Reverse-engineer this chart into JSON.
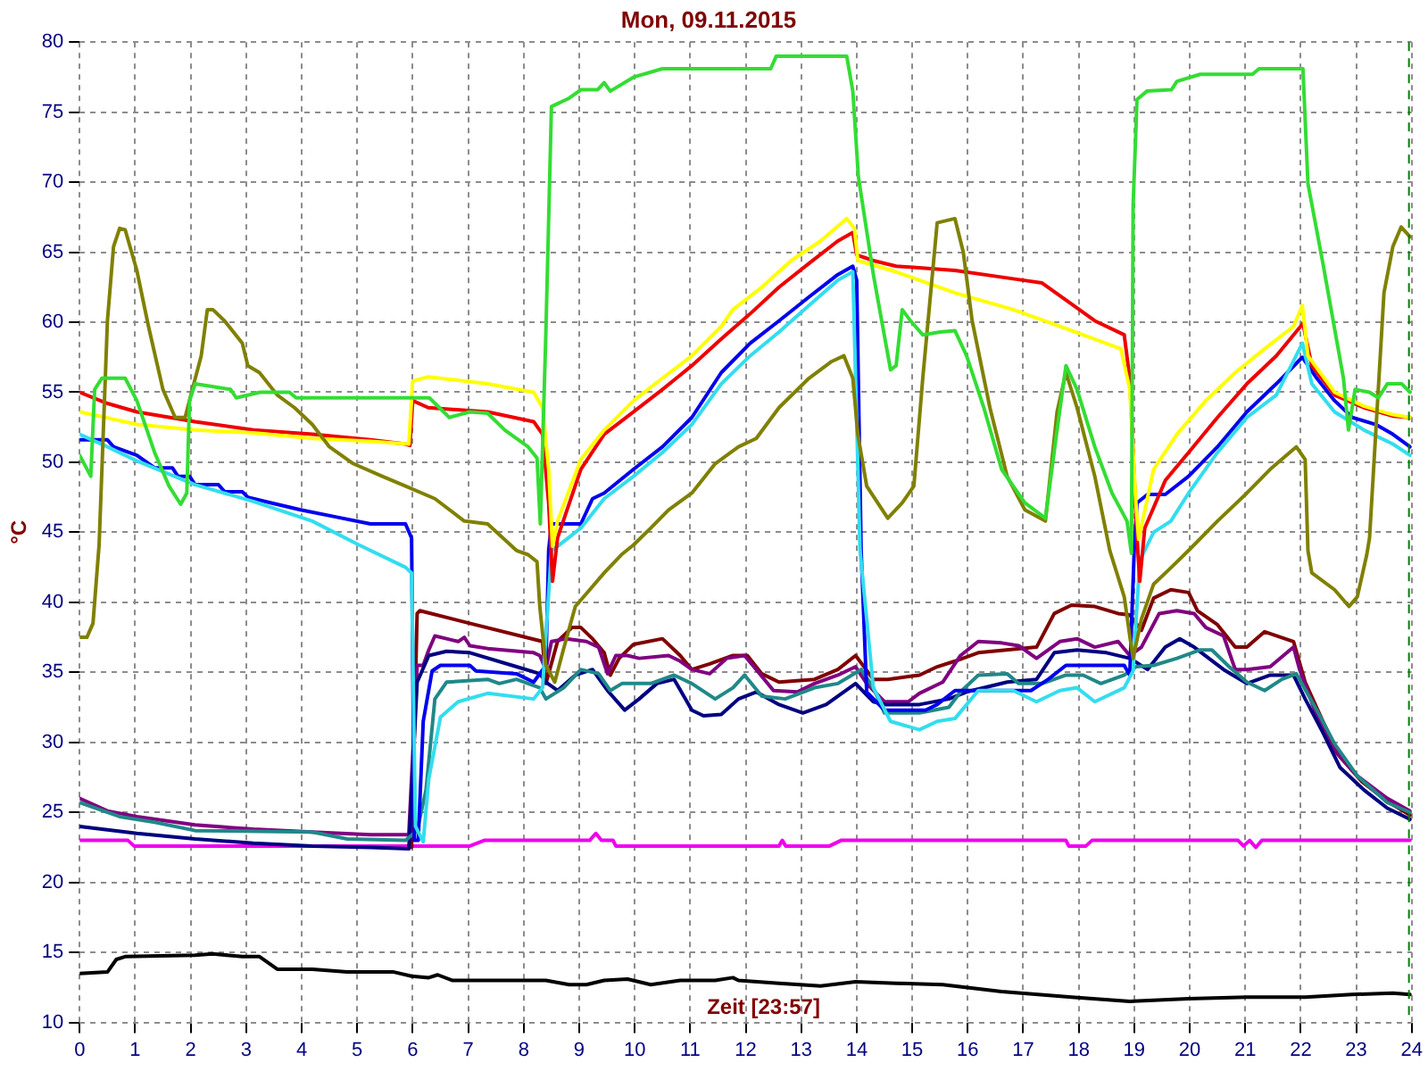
{
  "chart_data": {
    "type": "line",
    "title": "Mon, 09.11.2015",
    "xlabel": "Zeit [23:57]",
    "ylabel": "°C",
    "xlim": [
      0,
      24
    ],
    "xticks": [
      0,
      1,
      2,
      3,
      4,
      5,
      6,
      7,
      8,
      9,
      10,
      11,
      12,
      13,
      14,
      15,
      16,
      17,
      18,
      19,
      20,
      21,
      22,
      23,
      24
    ],
    "ylim": [
      10,
      80
    ],
    "yticks": [
      10,
      15,
      20,
      25,
      30,
      35,
      40,
      45,
      50,
      55,
      60,
      65,
      70,
      75,
      80
    ],
    "grid": true,
    "marker": "none",
    "ref_lines": [
      {
        "axis": "x",
        "value": 23.95,
        "color": "#008000",
        "line_style": "dashed"
      }
    ],
    "series": [
      {
        "color": "#33dd33",
        "x": [
          0,
          0.2,
          0.27,
          0.4,
          0.82,
          1.03,
          1.35,
          1.61,
          1.82,
          1.93,
          1.98,
          2.08,
          2.72,
          2.82,
          3.25,
          3.78,
          3.9,
          6.3,
          6.66,
          7.03,
          7.35,
          7.66,
          8.08,
          8.24,
          8.3,
          8.4,
          8.5,
          8.82,
          9.03,
          9.33,
          9.45,
          9.56,
          9.98,
          10.5,
          12.45,
          12.55,
          13.82,
          13.93,
          14.03,
          14.3,
          14.61,
          14.71,
          14.82,
          14.97,
          15.19,
          15.5,
          15.77,
          15.98,
          16.29,
          16.61,
          17.03,
          17.4,
          17.6,
          17.77,
          17.97,
          18.29,
          18.6,
          18.87,
          18.95,
          18.98,
          19.05,
          19.23,
          19.67,
          19.77,
          20.19,
          21.13,
          21.25,
          22.04,
          22.13,
          22.4,
          22.77,
          22.86,
          22.98,
          23.24,
          23.4,
          23.56,
          23.82,
          23.97
        ],
        "values": [
          50.5,
          49.0,
          55.2,
          56.0,
          56.0,
          54.4,
          50.7,
          48.3,
          47.0,
          47.8,
          54.4,
          55.6,
          55.2,
          54.6,
          55.0,
          55.0,
          54.6,
          54.6,
          53.2,
          53.6,
          53.5,
          52.3,
          51.1,
          50.3,
          45.6,
          59.3,
          75.4,
          76.0,
          76.6,
          76.6,
          77.1,
          76.5,
          77.5,
          78.1,
          78.1,
          79.0,
          79.0,
          76.5,
          70.4,
          63.4,
          56.6,
          56.9,
          60.9,
          60.1,
          59.1,
          59.3,
          59.4,
          57.6,
          53.9,
          49.5,
          47.1,
          46.0,
          52.0,
          56.9,
          55.2,
          51.1,
          47.8,
          45.8,
          43.5,
          68.3,
          75.9,
          76.5,
          76.6,
          77.2,
          77.7,
          77.7,
          78.1,
          78.1,
          69.9,
          64.2,
          56.0,
          52.3,
          55.2,
          55.0,
          54.6,
          55.6,
          55.6,
          55.0
        ]
      },
      {
        "color": "#808000",
        "x": [
          0,
          0.13,
          0.24,
          0.35,
          0.5,
          0.61,
          0.72,
          0.82,
          1.03,
          1.24,
          1.5,
          1.72,
          1.9,
          2.03,
          2.19,
          2.3,
          2.4,
          2.61,
          2.93,
          3.03,
          3.24,
          3.56,
          3.87,
          4.19,
          4.5,
          4.93,
          5.45,
          5.87,
          6.4,
          6.93,
          7.35,
          7.87,
          8.08,
          8.24,
          8.29,
          8.4,
          8.56,
          8.72,
          8.93,
          9.19,
          9.45,
          9.76,
          9.98,
          10.29,
          10.61,
          11.03,
          11.45,
          11.87,
          12.19,
          12.6,
          13.14,
          13.55,
          13.77,
          13.93,
          14.02,
          14.18,
          14.56,
          14.82,
          15.03,
          15.19,
          15.45,
          15.77,
          15.92,
          16.08,
          16.4,
          16.71,
          17.03,
          17.4,
          17.61,
          17.77,
          17.97,
          18.29,
          18.56,
          18.82,
          18.92,
          18.98,
          19.13,
          19.35,
          19.67,
          19.98,
          20.5,
          21.03,
          21.45,
          21.92,
          22.08,
          22.13,
          22.2,
          22.61,
          22.87,
          23.02,
          23.19,
          23.24,
          23.35,
          23.5,
          23.66,
          23.81,
          23.97
        ],
        "values": [
          37.5,
          37.5,
          38.5,
          44.1,
          60.1,
          65.4,
          66.7,
          66.6,
          63.7,
          59.7,
          55.2,
          53.2,
          53.2,
          55.2,
          57.6,
          60.9,
          60.9,
          60.1,
          58.5,
          56.9,
          56.4,
          54.8,
          53.9,
          52.7,
          51.1,
          49.9,
          49.0,
          48.3,
          47.4,
          45.8,
          45.6,
          43.7,
          43.4,
          42.9,
          39.7,
          35.5,
          34.3,
          36.7,
          39.7,
          40.9,
          42.1,
          43.4,
          44.1,
          45.3,
          46.6,
          47.8,
          49.9,
          51.1,
          51.7,
          53.9,
          56.0,
          57.2,
          57.6,
          56.0,
          52.0,
          48.3,
          46.0,
          47.1,
          48.3,
          56.0,
          67.1,
          67.4,
          65.0,
          60.1,
          53.9,
          49.0,
          46.6,
          45.8,
          53.6,
          56.4,
          53.9,
          49.0,
          43.7,
          40.4,
          37.6,
          36.0,
          38.8,
          41.3,
          42.5,
          43.7,
          45.8,
          47.8,
          49.5,
          51.1,
          50.2,
          43.7,
          42.1,
          40.9,
          39.7,
          40.4,
          43.4,
          44.6,
          52.0,
          62.1,
          65.4,
          66.8,
          66.1
        ]
      },
      {
        "color": "#ffff00",
        "x": [
          0,
          1.03,
          2.08,
          3.13,
          4.19,
          5.24,
          5.93,
          6.0,
          6.28,
          7.35,
          8.18,
          8.34,
          8.45,
          8.52,
          8.61,
          9.03,
          9.45,
          9.98,
          10.5,
          11.03,
          11.56,
          11.77,
          12.29,
          12.82,
          13.35,
          13.82,
          13.96,
          14.02,
          14.71,
          15.77,
          16.82,
          17.87,
          18.76,
          18.92,
          19.03,
          19.08,
          19.35,
          19.77,
          20.29,
          20.82,
          21.35,
          21.87,
          22.03,
          22.13,
          22.61,
          23.14,
          23.66,
          23.97
        ],
        "values": [
          53.6,
          52.7,
          52.3,
          52.1,
          51.7,
          51.5,
          51.3,
          55.8,
          56.1,
          55.6,
          55.0,
          53.9,
          49.5,
          44.0,
          45.8,
          50.2,
          52.3,
          54.4,
          56.0,
          57.6,
          59.7,
          60.9,
          62.5,
          64.4,
          65.8,
          67.4,
          66.7,
          64.4,
          63.6,
          62.1,
          60.9,
          59.4,
          58.1,
          55.2,
          47.1,
          44.5,
          49.5,
          52.0,
          54.4,
          56.4,
          58.1,
          59.7,
          61.2,
          57.6,
          55.0,
          54.0,
          53.4,
          53.2
        ]
      },
      {
        "color": "#ee0000",
        "x": [
          0,
          0.5,
          1.03,
          2.08,
          3.13,
          4.19,
          5.24,
          5.87,
          5.95,
          6.0,
          6.28,
          7.35,
          8.18,
          8.34,
          8.45,
          8.52,
          8.61,
          9.03,
          9.45,
          9.98,
          10.5,
          11.03,
          11.56,
          12.08,
          12.6,
          13.14,
          13.66,
          13.93,
          14.0,
          14.3,
          14.71,
          15.77,
          16.82,
          17.34,
          17.87,
          18.29,
          18.82,
          18.92,
          19.05,
          19.1,
          19.19,
          19.56,
          19.98,
          20.5,
          21.03,
          21.56,
          22.04,
          22.2,
          22.61,
          23.14,
          23.66,
          23.97
        ],
        "values": [
          55.0,
          54.2,
          53.6,
          52.9,
          52.3,
          52.0,
          51.6,
          51.3,
          51.2,
          54.4,
          53.9,
          53.6,
          52.9,
          52.0,
          47.1,
          41.5,
          44.6,
          49.5,
          52.0,
          53.6,
          55.2,
          56.9,
          58.8,
          60.6,
          62.5,
          64.2,
          65.8,
          66.4,
          64.8,
          64.4,
          64.0,
          63.7,
          63.1,
          62.8,
          61.3,
          60.1,
          59.1,
          56.0,
          44.6,
          41.5,
          45.3,
          48.7,
          50.7,
          53.2,
          55.6,
          57.6,
          59.9,
          56.9,
          54.8,
          53.9,
          53.3,
          53.2
        ]
      },
      {
        "color": "#33ddee",
        "x": [
          0,
          0.5,
          1.03,
          2.08,
          3.13,
          4.19,
          5.03,
          5.87,
          5.98,
          6.05,
          6.19,
          6.29,
          6.5,
          6.82,
          7.35,
          8.18,
          8.34,
          8.5,
          8.61,
          9.03,
          9.45,
          9.98,
          10.5,
          11.03,
          11.56,
          12.08,
          12.6,
          13.14,
          13.66,
          13.93,
          14.06,
          14.3,
          14.61,
          15.13,
          15.45,
          15.77,
          16.19,
          16.82,
          17.24,
          17.66,
          17.97,
          18.29,
          18.82,
          18.98,
          19.1,
          19.35,
          19.66,
          19.98,
          20.5,
          21.03,
          21.56,
          22.03,
          22.2,
          22.61,
          23.14,
          23.66,
          23.97
        ],
        "values": [
          52.0,
          51.1,
          50.1,
          48.4,
          47.2,
          45.8,
          44.1,
          42.5,
          42.1,
          24.0,
          22.9,
          27.4,
          31.8,
          32.9,
          33.5,
          33.1,
          33.9,
          43.7,
          44.0,
          45.3,
          47.4,
          49.0,
          50.7,
          52.7,
          55.6,
          57.6,
          59.3,
          61.2,
          63.0,
          63.6,
          43.7,
          33.9,
          31.5,
          30.9,
          31.5,
          31.7,
          33.7,
          33.7,
          32.9,
          33.7,
          33.9,
          32.9,
          33.9,
          35.1,
          43.0,
          45.0,
          45.8,
          47.8,
          50.7,
          53.2,
          54.8,
          58.5,
          55.6,
          53.6,
          52.3,
          51.3,
          50.5
        ]
      },
      {
        "color": "#0000ee",
        "x": [
          0,
          0.5,
          0.61,
          1.03,
          1.35,
          1.67,
          1.77,
          1.98,
          2.08,
          2.5,
          2.61,
          2.93,
          3.03,
          3.45,
          3.98,
          4.61,
          5.24,
          5.87,
          5.98,
          6.03,
          6.1,
          6.19,
          6.35,
          6.5,
          7.03,
          7.14,
          7.87,
          8.18,
          8.4,
          8.45,
          8.5,
          9.03,
          9.24,
          9.45,
          9.98,
          10.5,
          11.03,
          11.56,
          12.08,
          12.6,
          13.14,
          13.66,
          13.93,
          14.0,
          14.08,
          14.18,
          14.5,
          15.24,
          15.45,
          15.77,
          17.14,
          17.45,
          17.77,
          18.82,
          18.92,
          19.0,
          19.05,
          19.24,
          19.56,
          19.98,
          20.5,
          21.03,
          21.56,
          22.03,
          22.29,
          22.61,
          22.93,
          23.35,
          23.66,
          23.97
        ],
        "values": [
          51.6,
          51.6,
          51.1,
          50.5,
          49.6,
          49.6,
          49.0,
          49.0,
          48.4,
          48.4,
          47.9,
          47.9,
          47.5,
          47.1,
          46.6,
          46.1,
          45.6,
          45.6,
          44.6,
          23.0,
          23.0,
          31.5,
          35.1,
          35.5,
          35.5,
          35.1,
          34.9,
          34.3,
          35.5,
          43.7,
          45.6,
          45.6,
          47.4,
          47.8,
          49.5,
          51.1,
          53.2,
          56.4,
          58.5,
          60.1,
          61.8,
          63.4,
          64.0,
          63.0,
          43.7,
          33.6,
          32.3,
          32.3,
          32.7,
          33.7,
          33.7,
          34.5,
          35.5,
          35.5,
          34.8,
          43.7,
          47.1,
          47.7,
          47.7,
          49.0,
          51.1,
          53.6,
          55.6,
          57.5,
          56.0,
          54.4,
          53.2,
          52.7,
          52.0,
          51.1
        ]
      },
      {
        "color": "#208888",
        "x": [
          0,
          0.72,
          1.35,
          2.08,
          4.19,
          4.82,
          5.87,
          6.08,
          6.24,
          6.4,
          6.61,
          7.35,
          7.56,
          7.87,
          8.08,
          8.29,
          8.4,
          8.72,
          9.03,
          9.35,
          9.56,
          9.77,
          10.29,
          10.71,
          11.03,
          11.45,
          11.77,
          11.98,
          12.29,
          12.71,
          13.24,
          13.66,
          14.08,
          14.3,
          14.5,
          15.13,
          15.66,
          15.87,
          16.19,
          16.71,
          16.92,
          17.34,
          17.77,
          18.08,
          18.4,
          18.82,
          19.03,
          19.35,
          19.77,
          20.19,
          20.4,
          20.71,
          21.03,
          21.35,
          21.66,
          21.92,
          22.29,
          22.61,
          23.02,
          23.56,
          23.97
        ],
        "values": [
          25.7,
          24.7,
          24.3,
          23.7,
          23.6,
          23.1,
          23.0,
          23.7,
          26.6,
          33.1,
          34.3,
          34.5,
          34.2,
          34.5,
          34.2,
          33.9,
          33.1,
          33.9,
          35.2,
          34.9,
          33.7,
          34.2,
          34.2,
          34.8,
          34.2,
          33.1,
          33.9,
          34.8,
          33.3,
          33.1,
          33.9,
          34.2,
          35.2,
          33.9,
          32.1,
          32.1,
          32.5,
          33.6,
          34.8,
          34.9,
          34.2,
          34.2,
          34.8,
          34.8,
          34.2,
          34.8,
          35.4,
          35.5,
          36.0,
          36.6,
          36.6,
          35.4,
          34.3,
          33.7,
          34.5,
          34.9,
          32.3,
          29.9,
          27.6,
          25.7,
          25.0
        ]
      },
      {
        "color": "#000080",
        "x": [
          0,
          1.03,
          2.08,
          3.13,
          4.19,
          5.24,
          5.93,
          6.08,
          6.29,
          6.61,
          7.03,
          7.87,
          8.29,
          8.4,
          8.61,
          8.93,
          9.24,
          9.51,
          9.82,
          10.08,
          10.4,
          10.71,
          11.03,
          11.24,
          11.56,
          11.87,
          12.19,
          12.6,
          13.03,
          13.45,
          13.98,
          14.3,
          14.5,
          15.13,
          15.66,
          15.98,
          16.71,
          17.24,
          17.56,
          17.97,
          18.5,
          18.92,
          19.24,
          19.56,
          19.82,
          20.08,
          20.61,
          21.03,
          21.45,
          21.87,
          22.08,
          22.4,
          22.71,
          23.14,
          23.56,
          23.97
        ],
        "values": [
          24.0,
          23.5,
          23.1,
          22.8,
          22.6,
          22.5,
          22.4,
          34.3,
          36.2,
          36.5,
          36.4,
          35.4,
          34.9,
          34.3,
          33.7,
          34.8,
          35.2,
          33.7,
          32.3,
          33.1,
          34.2,
          34.5,
          32.3,
          31.9,
          32.0,
          33.1,
          33.6,
          32.7,
          32.1,
          32.7,
          34.2,
          32.9,
          32.7,
          32.7,
          33.1,
          33.6,
          34.3,
          34.5,
          36.4,
          36.6,
          36.4,
          36.0,
          35.2,
          36.8,
          37.4,
          36.8,
          35.2,
          34.2,
          34.8,
          34.8,
          33.1,
          30.7,
          28.2,
          26.6,
          25.3,
          24.5
        ]
      },
      {
        "color": "#800080",
        "x": [
          0,
          0.5,
          1.03,
          2.08,
          3.13,
          4.19,
          5.24,
          5.93,
          6.08,
          6.19,
          6.29,
          6.4,
          6.61,
          6.82,
          6.93,
          7.03,
          7.35,
          8.18,
          8.29,
          8.4,
          8.5,
          8.77,
          9.13,
          9.35,
          9.51,
          9.66,
          9.87,
          10.08,
          10.61,
          10.82,
          11.03,
          11.35,
          11.66,
          11.98,
          12.19,
          12.5,
          12.93,
          13.24,
          13.66,
          13.98,
          14.18,
          14.5,
          14.93,
          15.13,
          15.55,
          15.87,
          16.19,
          16.61,
          16.92,
          17.24,
          17.66,
          17.97,
          18.29,
          18.71,
          18.92,
          19.13,
          19.45,
          19.77,
          20.08,
          20.29,
          20.61,
          20.82,
          21.03,
          21.45,
          21.87,
          21.98,
          22.29,
          22.61,
          23.02,
          23.56,
          23.97
        ],
        "values": [
          26.0,
          25.1,
          24.7,
          24.1,
          23.8,
          23.6,
          23.4,
          23.4,
          35.5,
          35.5,
          36.6,
          37.6,
          37.4,
          37.2,
          37.5,
          36.9,
          36.7,
          36.4,
          36.2,
          35.2,
          37.2,
          37.4,
          37.2,
          36.8,
          34.9,
          36.2,
          36.2,
          36.0,
          36.2,
          35.8,
          35.2,
          34.9,
          36.0,
          36.2,
          35.2,
          33.7,
          33.6,
          34.2,
          34.8,
          35.4,
          34.2,
          32.9,
          32.9,
          33.5,
          34.3,
          36.2,
          37.2,
          37.1,
          36.9,
          36.0,
          37.2,
          37.4,
          36.8,
          37.2,
          36.2,
          36.8,
          39.2,
          39.4,
          39.2,
          38.2,
          37.6,
          35.2,
          35.2,
          35.4,
          36.8,
          35.2,
          31.9,
          29.4,
          27.6,
          26.0,
          25.1
        ]
      },
      {
        "color": "#800000",
        "x": [
          5.98,
          6.08,
          6.13,
          6.93,
          8.34,
          8.4,
          8.61,
          8.87,
          9.03,
          9.24,
          9.45,
          9.56,
          9.72,
          9.98,
          10.5,
          10.82,
          11.03,
          11.35,
          11.77,
          12.03,
          12.29,
          12.6,
          13.24,
          13.66,
          13.98,
          14.3,
          14.56,
          15.13,
          15.45,
          15.77,
          16.19,
          17.24,
          17.56,
          17.87,
          18.29,
          18.71,
          18.92,
          19.13,
          19.35,
          19.66,
          19.98,
          20.14,
          20.5,
          20.82,
          21.03,
          21.35,
          21.87,
          22.08,
          22.4,
          22.7,
          23.1,
          23.56,
          23.97
        ],
        "values": [
          22.5,
          39.2,
          39.4,
          38.6,
          37.2,
          34.2,
          37.2,
          38.2,
          38.2,
          37.4,
          36.4,
          34.8,
          36.0,
          37.0,
          37.4,
          36.2,
          35.2,
          35.6,
          36.2,
          36.2,
          34.9,
          34.3,
          34.5,
          35.2,
          36.2,
          34.5,
          34.5,
          34.8,
          35.4,
          35.8,
          36.4,
          36.8,
          39.2,
          39.8,
          39.7,
          39.2,
          39.1,
          38.0,
          40.3,
          40.9,
          40.7,
          39.4,
          38.4,
          36.8,
          36.8,
          37.9,
          37.2,
          34.3,
          31.5,
          29.0,
          27.2,
          25.8,
          24.8
        ]
      },
      {
        "color": "#ee00ee",
        "x": [
          0,
          0.87,
          0.98,
          7.03,
          7.29,
          9.19,
          9.3,
          9.4,
          9.61,
          9.66,
          12.6,
          12.66,
          12.72,
          13.51,
          13.72,
          17.77,
          17.82,
          18.13,
          18.24,
          20.87,
          20.97,
          21.08,
          21.19,
          21.3,
          23.97
        ],
        "values": [
          23.0,
          23.0,
          22.6,
          22.6,
          23.0,
          23.0,
          23.5,
          23.0,
          23.0,
          22.6,
          22.6,
          23.0,
          22.6,
          22.6,
          23.0,
          23.0,
          22.6,
          22.6,
          23.0,
          23.0,
          22.6,
          23.0,
          22.5,
          23.0,
          23.0
        ]
      },
      {
        "color": "#000000",
        "x": [
          0,
          0.5,
          0.66,
          0.82,
          2.08,
          2.4,
          2.93,
          3.24,
          3.56,
          4.19,
          4.82,
          5.66,
          5.98,
          6.29,
          6.45,
          6.72,
          8.4,
          8.82,
          9.13,
          9.45,
          9.87,
          10.29,
          10.82,
          11.45,
          11.77,
          11.87,
          12.6,
          13.35,
          13.98,
          14.71,
          15.55,
          16.61,
          17.87,
          18.92,
          19.98,
          21.03,
          22.08,
          22.92,
          23.66,
          23.97
        ],
        "values": [
          13.5,
          13.6,
          14.5,
          14.7,
          14.8,
          14.9,
          14.7,
          14.7,
          13.8,
          13.8,
          13.6,
          13.6,
          13.3,
          13.2,
          13.4,
          13.0,
          13.0,
          12.7,
          12.7,
          13.0,
          13.1,
          12.7,
          13.0,
          13.0,
          13.2,
          13.0,
          12.8,
          12.6,
          12.9,
          12.8,
          12.7,
          12.2,
          11.8,
          11.5,
          11.7,
          11.8,
          11.8,
          12.0,
          12.1,
          12.0
        ]
      }
    ]
  }
}
